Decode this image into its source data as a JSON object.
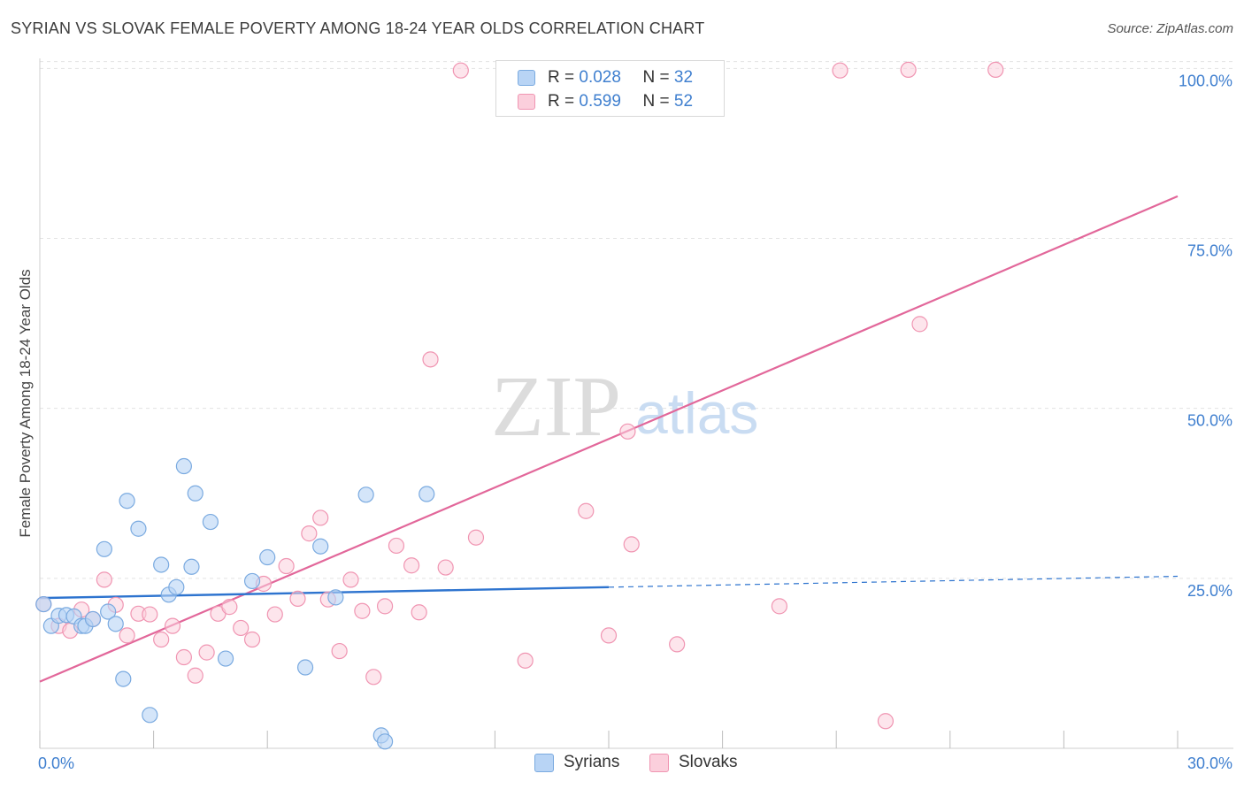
{
  "header": {
    "title": "SYRIAN VS SLOVAK FEMALE POVERTY AMONG 18-24 YEAR OLDS CORRELATION CHART",
    "source": "Source: ZipAtlas.com"
  },
  "watermark": {
    "zip": "ZIP",
    "atlas": "atlas"
  },
  "legend": {
    "syrians": {
      "r_label": "R =",
      "r_value": "0.028",
      "n_label": "N =",
      "n_value": "32"
    },
    "slovaks": {
      "r_label": "R =",
      "r_value": "0.599",
      "n_label": "N =",
      "n_value": "52"
    }
  },
  "bottom_legend": {
    "syrians": "Syrians",
    "slovaks": "Slovaks"
  },
  "colors": {
    "syrians_fill": "#b8d4f5",
    "syrians_stroke": "#7aaae0",
    "syrians_line": "#2e74cf",
    "slovaks_fill": "#fbcfdc",
    "slovaks_stroke": "#f095b2",
    "slovaks_line": "#e2679a",
    "tick_label": "#3f7fcf",
    "grid": "#e3e3e3"
  },
  "chart_data": {
    "type": "scatter",
    "title": "SYRIAN VS SLOVAK FEMALE POVERTY AMONG 18-24 YEAR OLDS CORRELATION CHART",
    "xlabel": "",
    "ylabel": "Female Poverty Among 18-24 Year Olds",
    "xlim": [
      0,
      30
    ],
    "ylim": [
      0,
      102
    ],
    "x_tick_labels": [
      "0.0%",
      "30.0%"
    ],
    "y_ticks": [
      25,
      50,
      75,
      100
    ],
    "y_tick_labels": [
      "25.0%",
      "50.0%",
      "75.0%",
      "100.0%"
    ],
    "grid": true,
    "legend_position": "top-center",
    "series": [
      {
        "name": "Syrians",
        "r": 0.028,
        "n": 32,
        "points": [
          [
            0.1,
            21.2
          ],
          [
            0.3,
            18.0
          ],
          [
            0.5,
            19.5
          ],
          [
            0.7,
            19.6
          ],
          [
            0.9,
            19.4
          ],
          [
            1.1,
            18.0
          ],
          [
            1.2,
            18.0
          ],
          [
            1.4,
            19.0
          ],
          [
            1.7,
            29.3
          ],
          [
            1.8,
            20.1
          ],
          [
            2.0,
            18.3
          ],
          [
            2.2,
            10.2
          ],
          [
            2.3,
            36.4
          ],
          [
            2.6,
            32.3
          ],
          [
            2.9,
            4.9
          ],
          [
            3.2,
            27.0
          ],
          [
            3.4,
            22.6
          ],
          [
            3.6,
            23.7
          ],
          [
            3.8,
            41.5
          ],
          [
            4.0,
            26.7
          ],
          [
            4.1,
            37.5
          ],
          [
            4.5,
            33.3
          ],
          [
            4.9,
            13.2
          ],
          [
            5.6,
            24.6
          ],
          [
            6.0,
            28.1
          ],
          [
            7.0,
            11.9
          ],
          [
            7.4,
            29.7
          ],
          [
            7.8,
            22.2
          ],
          [
            8.6,
            37.3
          ],
          [
            9.0,
            1.9
          ],
          [
            9.1,
            1.0
          ],
          [
            10.2,
            37.4
          ]
        ],
        "trend": {
          "x": [
            0,
            15,
            30
          ],
          "y": [
            22.1,
            23.7,
            25.3
          ],
          "solid_until_x": 15
        }
      },
      {
        "name": "Slovaks",
        "r": 0.599,
        "n": 52,
        "points": [
          [
            0.1,
            21.2
          ],
          [
            0.5,
            18.0
          ],
          [
            0.8,
            17.3
          ],
          [
            1.1,
            20.4
          ],
          [
            1.4,
            19.0
          ],
          [
            1.7,
            24.8
          ],
          [
            2.0,
            21.1
          ],
          [
            2.3,
            16.6
          ],
          [
            2.6,
            19.8
          ],
          [
            2.9,
            19.7
          ],
          [
            3.2,
            16.0
          ],
          [
            3.5,
            18.0
          ],
          [
            3.8,
            13.4
          ],
          [
            4.1,
            10.7
          ],
          [
            4.4,
            14.1
          ],
          [
            4.7,
            19.8
          ],
          [
            5.0,
            20.8
          ],
          [
            5.3,
            17.7
          ],
          [
            5.6,
            16.0
          ],
          [
            5.9,
            24.2
          ],
          [
            6.2,
            19.7
          ],
          [
            6.5,
            26.8
          ],
          [
            6.8,
            22.0
          ],
          [
            7.1,
            31.6
          ],
          [
            7.4,
            33.9
          ],
          [
            7.6,
            21.9
          ],
          [
            7.9,
            14.3
          ],
          [
            8.2,
            24.8
          ],
          [
            8.5,
            20.2
          ],
          [
            8.8,
            10.5
          ],
          [
            9.1,
            20.9
          ],
          [
            9.4,
            29.8
          ],
          [
            9.8,
            26.9
          ],
          [
            10.0,
            20.0
          ],
          [
            10.3,
            57.2
          ],
          [
            10.7,
            26.6
          ],
          [
            11.1,
            99.7
          ],
          [
            11.5,
            31.0
          ],
          [
            12.8,
            12.9
          ],
          [
            14.4,
            34.9
          ],
          [
            15.0,
            16.6
          ],
          [
            15.5,
            46.6
          ],
          [
            15.6,
            30.0
          ],
          [
            16.2,
            94.7
          ],
          [
            16.4,
            99.9
          ],
          [
            16.8,
            15.3
          ],
          [
            19.5,
            20.9
          ],
          [
            21.1,
            99.7
          ],
          [
            22.3,
            4.0
          ],
          [
            22.9,
            99.8
          ],
          [
            23.2,
            62.4
          ],
          [
            25.2,
            99.8
          ]
        ],
        "trend": {
          "x": [
            0,
            30
          ],
          "y": [
            9.8,
            81.2
          ]
        }
      }
    ]
  }
}
